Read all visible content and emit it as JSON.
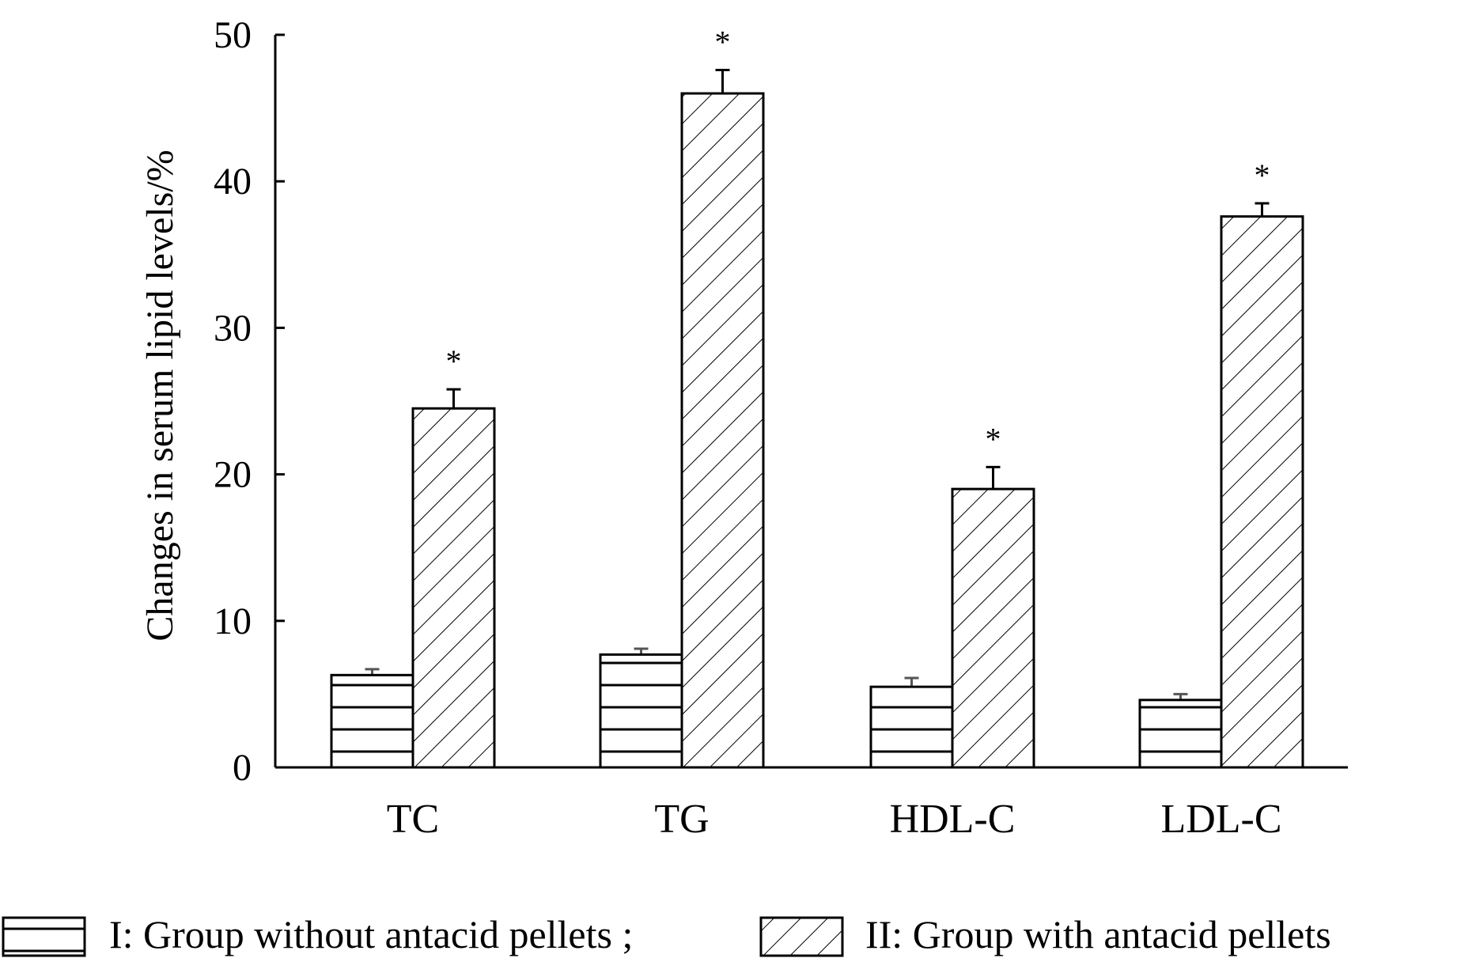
{
  "chart_data": {
    "type": "bar",
    "title": "",
    "xlabel": "",
    "ylabel": "Changes in serum lipid levels/%",
    "ylim": [
      0,
      50
    ],
    "yticks": [
      0,
      10,
      20,
      30,
      40,
      50
    ],
    "ytick_labels": [
      "0",
      "10",
      "20",
      "30",
      "40",
      "50"
    ],
    "grid": false,
    "categories": [
      "TC",
      "TG",
      "HDL-C",
      "LDL-C"
    ],
    "series": [
      {
        "name": "I: Group without antacid pellets ;",
        "pattern": "horizontal-lines",
        "values": [
          6.3,
          7.7,
          5.5,
          4.6
        ],
        "errors": [
          0.4,
          0.4,
          0.6,
          0.4
        ],
        "significance": [
          "",
          "",
          "",
          ""
        ]
      },
      {
        "name": "II: Group with antacid pellets",
        "pattern": "diagonal-hatch",
        "values": [
          24.5,
          46.0,
          19.0,
          37.6
        ],
        "errors": [
          1.3,
          1.6,
          1.5,
          0.9
        ],
        "significance": [
          "*",
          "*",
          "*",
          "*"
        ]
      }
    ],
    "legend_position": "bottom"
  }
}
